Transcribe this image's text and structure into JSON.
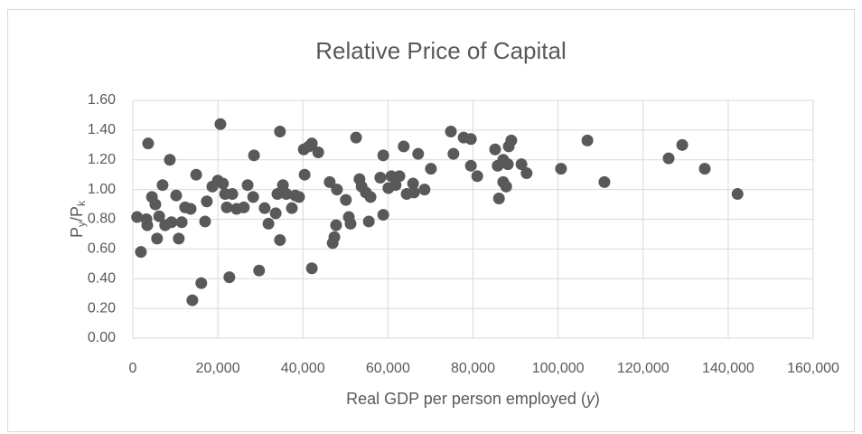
{
  "chart_data": {
    "type": "scatter",
    "title": "Relative Price of Capital",
    "xlabel": [
      "Real GDP per person employed (",
      "y",
      ")"
    ],
    "ylabel": [
      "P",
      "y",
      "/P",
      "k"
    ],
    "color": "#595959",
    "grid": true,
    "xlim": [
      0,
      160000
    ],
    "xticks": [
      0,
      {
        "value": 20000,
        "label": "20,000"
      },
      {
        "value": 40000,
        "label": "40,000"
      },
      {
        "value": 60000,
        "label": "60,000"
      },
      {
        "value": 80000,
        "label": "80,000"
      },
      {
        "value": 100000,
        "label": "100,000"
      },
      {
        "value": 120000,
        "label": "120,000"
      },
      {
        "value": 140000,
        "label": "140,000"
      },
      {
        "value": 160000,
        "label": "160,000"
      }
    ],
    "ylim": [
      0,
      1.6
    ],
    "yticks": [
      {
        "value": 0,
        "label": "0.00"
      },
      {
        "value": 0.2,
        "label": "0.20"
      },
      {
        "value": 0.4,
        "label": "0.40"
      },
      {
        "value": 0.6,
        "label": "0.60"
      },
      {
        "value": 0.8,
        "label": "0.80"
      },
      {
        "value": 1,
        "label": "1.00"
      },
      {
        "value": 1.2,
        "label": "1.20"
      },
      {
        "value": 1.4,
        "label": "1.40"
      },
      {
        "value": 1.6,
        "label": "1.60"
      }
    ],
    "x": [
      1000,
      1900,
      3200,
      3600,
      3400,
      4500,
      5300,
      5700,
      6200,
      7000,
      7600,
      8700,
      9100,
      10200,
      10800,
      11500,
      12300,
      13600,
      14000,
      14900,
      16100,
      17000,
      17400,
      18700,
      20000,
      20600,
      21200,
      21700,
      22100,
      22700,
      23400,
      24400,
      26100,
      27000,
      28300,
      28500,
      29700,
      31000,
      31900,
      33600,
      34000,
      34600,
      34600,
      35300,
      36100,
      37400,
      38200,
      39100,
      40200,
      40400,
      41400,
      42100,
      42100,
      43600,
      46300,
      47000,
      47400,
      47800,
      48000,
      50100,
      50800,
      51200,
      52500,
      53300,
      53800,
      54800,
      55500,
      55900,
      58200,
      58900,
      58900,
      60100,
      60800,
      61800,
      62700,
      63700,
      64400,
      65900,
      66100,
      67100,
      68600,
      70100,
      74800,
      75400,
      77800,
      79500,
      79500,
      81000,
      85200,
      85800,
      86100,
      87100,
      87100,
      87800,
      88200,
      88400,
      89000,
      91400,
      92600,
      100700,
      106900,
      110900,
      126000,
      129200,
      134500,
      142200
    ],
    "values": [
      0.815,
      0.58,
      0.8,
      1.31,
      0.76,
      0.95,
      0.9,
      0.67,
      0.82,
      1.03,
      0.76,
      1.2,
      0.78,
      0.96,
      0.67,
      0.78,
      0.88,
      0.87,
      0.255,
      1.1,
      0.37,
      0.785,
      0.92,
      1.02,
      1.06,
      1.44,
      1.04,
      0.97,
      0.88,
      0.41,
      0.97,
      0.87,
      0.88,
      1.03,
      0.95,
      1.23,
      0.455,
      0.875,
      0.77,
      0.84,
      0.97,
      1.39,
      0.66,
      1.03,
      0.97,
      0.875,
      0.96,
      0.95,
      1.27,
      1.1,
      1.29,
      1.31,
      0.47,
      1.25,
      1.05,
      0.64,
      0.68,
      0.76,
      1.0,
      0.93,
      0.815,
      0.77,
      1.35,
      1.07,
      1.02,
      0.98,
      0.785,
      0.95,
      1.08,
      0.83,
      1.23,
      1.01,
      1.09,
      1.03,
      1.09,
      1.29,
      0.97,
      1.04,
      0.98,
      1.24,
      1.0,
      1.14,
      1.39,
      1.24,
      1.35,
      1.34,
      1.16,
      1.09,
      1.27,
      1.16,
      0.94,
      1.2,
      1.05,
      1.02,
      1.17,
      1.29,
      1.33,
      1.17,
      1.11,
      1.14,
      1.33,
      1.05,
      1.21,
      1.3,
      1.14,
      0.97
    ]
  }
}
